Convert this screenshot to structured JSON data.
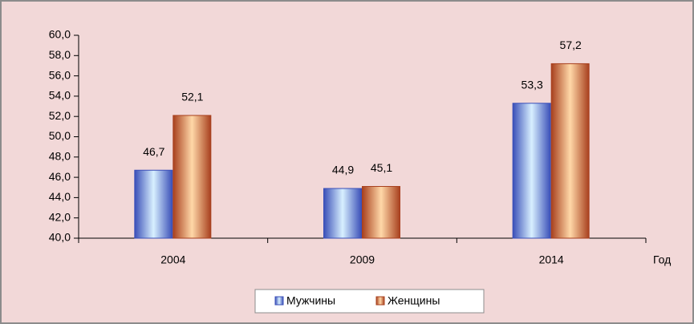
{
  "chart_data": {
    "type": "bar",
    "categories": [
      "2004",
      "2009",
      "2014"
    ],
    "x_label": "Год",
    "series": [
      {
        "name": "Мужчины",
        "color": "#3a4fb8",
        "values": [
          46.7,
          44.9,
          53.3
        ],
        "value_labels": [
          "46,7",
          "44,9",
          "53,3"
        ]
      },
      {
        "name": "Женщины",
        "color": "#a8401e",
        "values": [
          52.1,
          45.1,
          57.2
        ],
        "value_labels": [
          "52,1",
          "45,1",
          "57,2"
        ]
      }
    ],
    "ylim": [
      40,
      60
    ],
    "yticks": [
      {
        "value": 40,
        "label": "40,0"
      },
      {
        "value": 42,
        "label": "42,0"
      },
      {
        "value": 44,
        "label": "44,0"
      },
      {
        "value": 46,
        "label": "46,0"
      },
      {
        "value": 48,
        "label": "48,0"
      },
      {
        "value": 50,
        "label": "50,0"
      },
      {
        "value": 52,
        "label": "52,0"
      },
      {
        "value": 54,
        "label": "54,0"
      },
      {
        "value": 56,
        "label": "56,0"
      },
      {
        "value": 58,
        "label": "58,0"
      },
      {
        "value": 60,
        "label": "60,0"
      }
    ],
    "legend": "bottom"
  }
}
